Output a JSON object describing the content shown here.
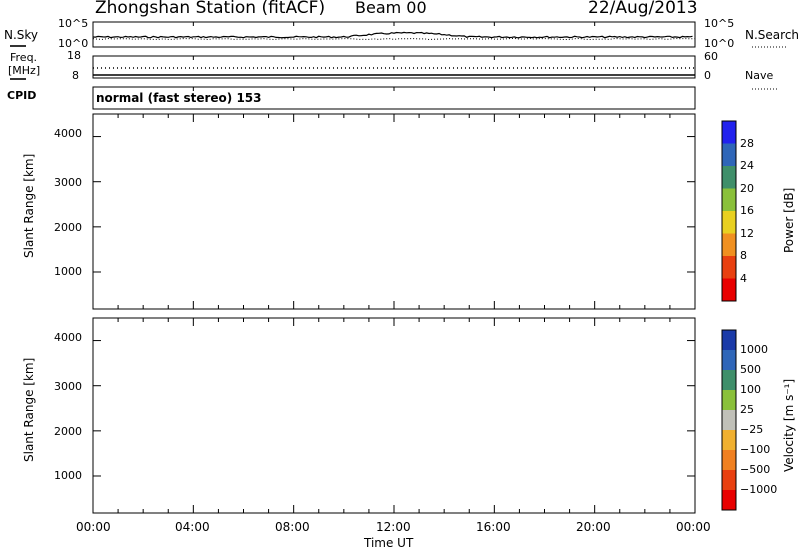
{
  "header": {
    "station": "Zhongshan Station (fitACF)",
    "beam": "Beam 00",
    "date": "22/Aug/2013"
  },
  "panels": {
    "nsky_label": "N.Sky",
    "nsearch_label": "N.Search",
    "nsky_ticks": [
      "10^5",
      "10^0"
    ],
    "nsearch_ticks": [
      "10^5",
      "10^0"
    ],
    "freq_label": "Freq.",
    "freq_unit": "[MHz]",
    "freq_ticks": [
      "18",
      "8"
    ],
    "nave_label": "Nave",
    "nave_ticks": [
      "60",
      "0"
    ],
    "cpid_label": "CPID",
    "cpid_value": "normal (fast stereo) 153"
  },
  "chart_data": [
    {
      "type": "heatmap",
      "name": "power",
      "ylabel": "Slant Range [km]",
      "yticks": [
        "4000",
        "3000",
        "2000",
        "1000"
      ],
      "ylim": [
        180,
        4500
      ],
      "colorbar_label": "Power [dB]",
      "colorbar_ticks": [
        "28",
        "24",
        "20",
        "16",
        "12",
        "8",
        "4"
      ],
      "colorscale": [
        "#2222ee",
        "#2f66b8",
        "#3f8f6a",
        "#8ac03a",
        "#e8d020",
        "#f09020",
        "#e84010",
        "#e80000"
      ]
    },
    {
      "type": "heatmap",
      "name": "velocity",
      "ylabel": "Slant Range [km]",
      "yticks": [
        "4000",
        "3000",
        "2000",
        "1000"
      ],
      "ylim": [
        180,
        4500
      ],
      "colorbar_label": "Velocity [m s⁻¹]",
      "colorbar_ticks": [
        "1000",
        "500",
        "100",
        "25",
        "−25",
        "−100",
        "−500",
        "−1000"
      ],
      "colorscale": [
        "#1a3aa8",
        "#2f66b8",
        "#3f8f6a",
        "#8ac03a",
        "#c0c0b8",
        "#f0b030",
        "#f08020",
        "#e84010",
        "#e80000"
      ]
    }
  ],
  "xaxis": {
    "ticks": [
      "00:00",
      "04:00",
      "08:00",
      "12:00",
      "16:00",
      "20:00",
      "00:00"
    ],
    "label": "Time UT"
  }
}
